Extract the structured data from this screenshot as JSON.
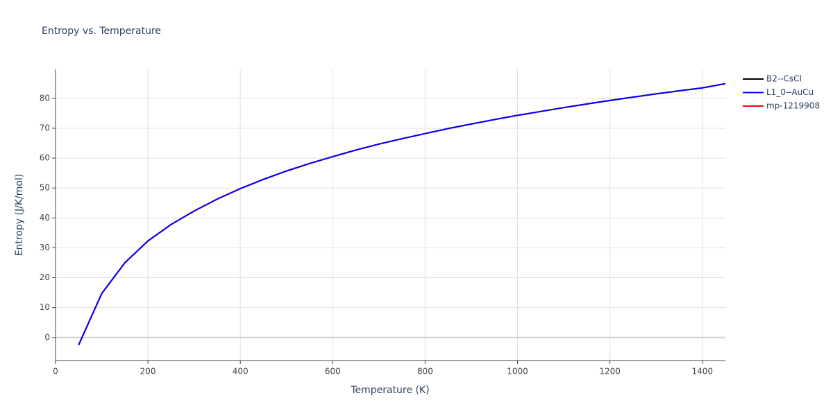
{
  "chart_data": {
    "type": "line",
    "title": "Entropy vs. Temperature",
    "x_label": "Temperature (K)",
    "y_label": "Entropy (J/K/mol)",
    "x": [
      50,
      100,
      150,
      200,
      250,
      300,
      350,
      400,
      450,
      500,
      550,
      600,
      650,
      700,
      750,
      800,
      850,
      900,
      950,
      1000,
      1050,
      1100,
      1150,
      1200,
      1250,
      1300,
      1350,
      1400,
      1450
    ],
    "series": [
      {
        "name": "B2--CsCl",
        "color": "#000000",
        "values": [
          -2.5,
          14.7,
          25,
          32.3,
          37.8,
          42.3,
          46.3,
          49.8,
          52.9,
          55.7,
          58.2,
          60.5,
          62.7,
          64.7,
          66.5,
          68.2,
          69.9,
          71.4,
          72.9,
          74.3,
          75.6,
          76.9,
          78.1,
          79.3,
          80.4,
          81.5,
          82.5,
          83.5,
          84.9
        ]
      },
      {
        "name": "mp-1219908",
        "color": "#ff0000",
        "values": [
          -2.5,
          14.7,
          25,
          32.3,
          37.8,
          42.3,
          46.3,
          49.8,
          52.9,
          55.7,
          58.2,
          60.5,
          62.7,
          64.7,
          66.5,
          68.2,
          69.9,
          71.4,
          72.9,
          74.3,
          75.6,
          76.9,
          78.1,
          79.3,
          80.4,
          81.5,
          82.5,
          83.5,
          84.9
        ]
      },
      {
        "name": "L1_0--AuCu",
        "color": "#0000ff",
        "values": [
          -2.5,
          14.7,
          25,
          32.3,
          37.8,
          42.3,
          46.3,
          49.8,
          52.9,
          55.7,
          58.2,
          60.5,
          62.7,
          64.7,
          66.5,
          68.2,
          69.9,
          71.4,
          72.9,
          74.3,
          75.6,
          76.9,
          78.1,
          79.3,
          80.4,
          81.5,
          82.5,
          83.5,
          84.9
        ]
      }
    ],
    "legend_order": [
      0,
      2,
      1
    ],
    "xlim": [
      0,
      1450
    ],
    "ylim": [
      -7.7,
      89.7
    ],
    "xticks": [
      0,
      200,
      400,
      600,
      800,
      1000,
      1200,
      1400
    ],
    "yticks": [
      0,
      10,
      20,
      30,
      40,
      50,
      60,
      70,
      80
    ],
    "grid": true,
    "legend_position": "right"
  }
}
